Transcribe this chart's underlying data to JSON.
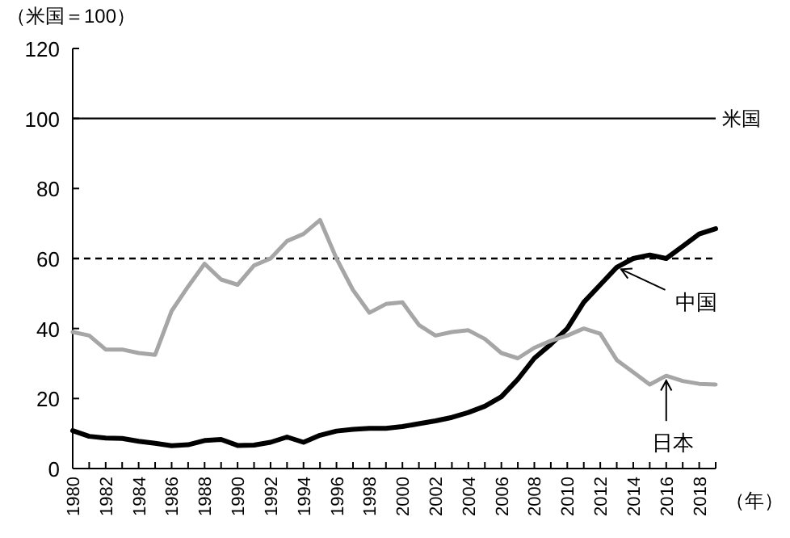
{
  "chart_data": {
    "type": "line",
    "ylabel": "（米国＝100）",
    "xlabel": "（年）",
    "x": [
      1980,
      1981,
      1982,
      1983,
      1984,
      1985,
      1986,
      1987,
      1988,
      1989,
      1990,
      1991,
      1992,
      1993,
      1994,
      1995,
      1996,
      1997,
      1998,
      1999,
      2000,
      2001,
      2002,
      2003,
      2004,
      2005,
      2006,
      2007,
      2008,
      2009,
      2010,
      2011,
      2012,
      2013,
      2014,
      2015,
      2016,
      2017,
      2018,
      2019
    ],
    "series": [
      {
        "color": "#000000",
        "values": [
          10.8,
          9.2,
          8.7,
          8.6,
          7.8,
          7.2,
          6.5,
          6.8,
          8,
          8.3,
          6.6,
          6.7,
          7.5,
          9,
          7.5,
          9.5,
          10.7,
          11.2,
          11.5,
          11.5,
          12,
          12.8,
          13.6,
          14.6,
          16,
          17.8,
          20.5,
          25.5,
          31.5,
          35.5,
          40,
          47.5,
          52.5,
          57.5,
          60,
          61,
          60,
          63.5,
          67,
          68.5
        ]
      },
      {
        "color": "#a6a6a6",
        "values": [
          39,
          38,
          34,
          34,
          33,
          32.5,
          45,
          52,
          58.5,
          54,
          52.5,
          58,
          60,
          65,
          67,
          71,
          60,
          51,
          44.5,
          47,
          47.5,
          41,
          38,
          39,
          39.5,
          37,
          33,
          31.5,
          34.5,
          36.5,
          38,
          40,
          38.5,
          31,
          27.5,
          24,
          26.5,
          25,
          24.2,
          24
        ]
      }
    ],
    "xlim": [
      1980,
      2019
    ],
    "xticks": [
      1980,
      {
        "value": 1981,
        "label": null
      },
      1982,
      {
        "value": 1983,
        "label": null
      },
      1984,
      {
        "value": 1985,
        "label": null
      },
      1986,
      {
        "value": 1987,
        "label": null
      },
      1988,
      {
        "value": 1989,
        "label": null
      },
      1990,
      {
        "value": 1991,
        "label": null
      },
      1992,
      {
        "value": 1993,
        "label": null
      },
      1994,
      {
        "value": 1995,
        "label": null
      },
      1996,
      {
        "value": 1997,
        "label": null
      },
      1998,
      {
        "value": 1999,
        "label": null
      },
      2000,
      {
        "value": 2001,
        "label": null
      },
      2002,
      {
        "value": 2003,
        "label": null
      },
      2004,
      {
        "value": 2005,
        "label": null
      },
      2006,
      {
        "value": 2007,
        "label": null
      },
      2008,
      {
        "value": 2009,
        "label": null
      },
      2010,
      {
        "value": 2011,
        "label": null
      },
      2012,
      {
        "value": 2013,
        "label": null
      },
      2014,
      {
        "value": 2015,
        "label": null
      },
      2016,
      {
        "value": 2017,
        "label": null
      },
      2018,
      {
        "value": 2019,
        "label": null
      }
    ],
    "ylim": [
      0,
      120
    ],
    "yticks": [
      0,
      20,
      40,
      60,
      80,
      100,
      120
    ],
    "ref_lines": [
      {
        "axis": "y",
        "value": 100,
        "label": "米国",
        "line_style": "solid"
      },
      {
        "axis": "y",
        "value": 60,
        "line_style": "dashed"
      }
    ],
    "annotations": [
      {
        "text": "中国",
        "x": 2013,
        "y": 57.5
      },
      {
        "text": "日本",
        "x": 2016,
        "y": 26.5
      }
    ],
    "grid": false
  }
}
